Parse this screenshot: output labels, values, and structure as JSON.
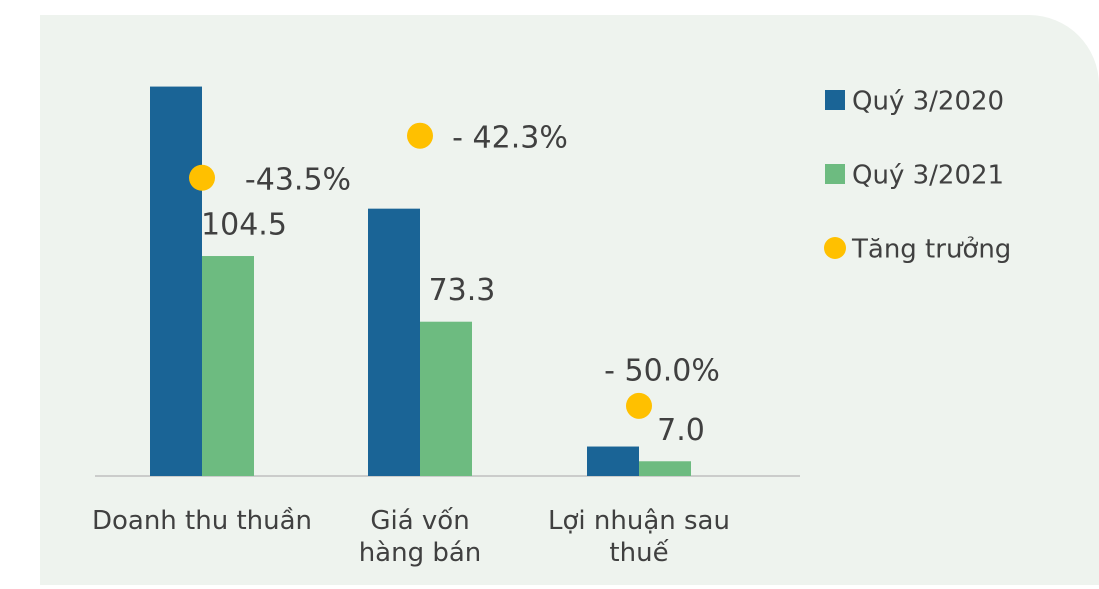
{
  "chart_data": {
    "type": "bar",
    "categories": [
      "Doanh thu thuần",
      "Giá vốn hàng bán",
      "Lợi nhuận sau thuế"
    ],
    "series": [
      {
        "name": "Quý 3/2020",
        "color": "#1a6496",
        "values": [
          185,
          127,
          14
        ]
      },
      {
        "name": "Quý 3/2021",
        "color": "#6dbb80",
        "values": [
          104.5,
          73.3,
          7.0
        ],
        "value_labels": [
          "104.5",
          "73.3",
          "7.0"
        ]
      },
      {
        "name": "Tăng trưởng",
        "type": "scatter",
        "axis": "y2",
        "color": "#ffc000",
        "values": [
          -43.5,
          -42.3,
          -50.0
        ],
        "value_labels": [
          "-43.5%",
          "- 42.3%",
          "- 50.0%"
        ]
      }
    ],
    "ylim": [
      0,
      200
    ],
    "y2lim": [
      -52,
      -40
    ],
    "legend": "right"
  }
}
